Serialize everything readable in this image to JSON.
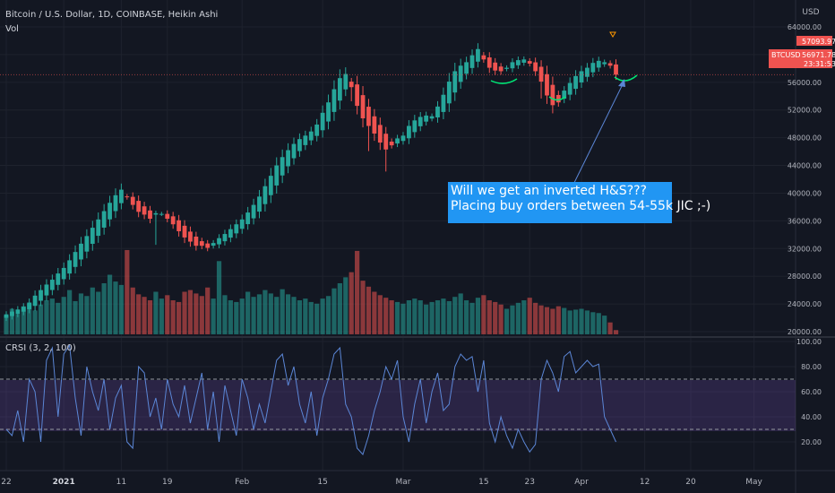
{
  "header": {
    "title": "Bitcoin / U.S. Dollar, 1D, COINBASE, Heikin Ashi",
    "vol_label": "Vol",
    "indicator_label": "CRSI (3, 2, 100)"
  },
  "annotation": {
    "line1": "Will we get an inverted H&S???",
    "line2": "Placing buy orders between 54-55k JIC ;-)"
  },
  "price_axis": {
    "currency": "USD",
    "ticks": [
      "64000.00",
      "60000.00",
      "56000.00",
      "52000.00",
      "48000.00",
      "44000.00",
      "40000.00",
      "36000.00",
      "32000.00",
      "28000.00",
      "24000.00",
      "20000.00"
    ],
    "price_tag_value": "57093.97",
    "symbol_tag": "BTCUSD",
    "symbol_price": "56971.78",
    "countdown": "23:31:53"
  },
  "crsi_axis": {
    "ticks": [
      "100.00",
      "80.00",
      "60.00",
      "40.00",
      "20.00"
    ]
  },
  "time_axis": {
    "labels": [
      "22",
      "2021",
      "11",
      "19",
      "Feb",
      "15",
      "Mar",
      "15",
      "23",
      "Apr",
      "12",
      "20",
      "May"
    ]
  },
  "colors": {
    "background": "#131722",
    "up": "#26a69a",
    "down": "#ef5350",
    "annotation_bg": "#2196f3",
    "crsi_line": "#5b86d6",
    "crsi_band": "#7e57c2",
    "marker": "#00e676"
  },
  "chart_data": {
    "type": "candlestick",
    "price_range": [
      20000,
      64000
    ],
    "crsi_range": [
      0,
      100
    ],
    "crsi_bands": [
      70,
      30
    ],
    "x_ticks": [
      {
        "label": "22",
        "index": 0
      },
      {
        "label": "2021",
        "index": 10
      },
      {
        "label": "11",
        "index": 20
      },
      {
        "label": "19",
        "index": 28
      },
      {
        "label": "Feb",
        "index": 41
      },
      {
        "label": "15",
        "index": 55
      },
      {
        "label": "Mar",
        "index": 69
      },
      {
        "label": "15",
        "index": 83
      },
      {
        "label": "23",
        "index": 91
      },
      {
        "label": "Apr",
        "index": 100
      },
      {
        "label": "12",
        "index": 111
      },
      {
        "label": "20",
        "index": 119
      },
      {
        "label": "May",
        "index": 130
      }
    ],
    "close": [
      22500,
      22900,
      23200,
      23600,
      24200,
      25200,
      26000,
      26800,
      27500,
      28400,
      29200,
      30300,
      31500,
      32700,
      33800,
      35000,
      36200,
      37400,
      38600,
      39700,
      40500,
      39400,
      38300,
      37300,
      36900,
      36300,
      37100,
      37000,
      36300,
      35500,
      34500,
      33600,
      33000,
      32400,
      32400,
      32100,
      32800,
      33500,
      34100,
      34800,
      35500,
      36200,
      37200,
      38300,
      39500,
      41000,
      42500,
      44000,
      45200,
      46200,
      47100,
      47800,
      48300,
      48900,
      49900,
      51600,
      53100,
      55000,
      56600,
      57200,
      55300,
      52600,
      50800,
      49700,
      48600,
      47300,
      46300,
      46900,
      47900,
      48300,
      49700,
      50500,
      51000,
      51200,
      51100,
      52500,
      54200,
      56100,
      57600,
      58400,
      58900,
      59900,
      60800,
      59300,
      58100,
      57700,
      57600,
      58100,
      58900,
      59200,
      59300,
      58700,
      57600,
      56100,
      54100,
      52700,
      53100,
      54800,
      55900,
      56900,
      57600,
      58100,
      58800,
      59100,
      58900,
      58400,
      57100
    ],
    "volume": [
      0.22,
      0.3,
      0.24,
      0.33,
      0.36,
      0.28,
      0.35,
      0.4,
      0.42,
      0.37,
      0.44,
      0.52,
      0.39,
      0.48,
      0.45,
      0.55,
      0.5,
      0.6,
      0.7,
      0.62,
      0.58,
      0.99,
      0.55,
      0.47,
      0.44,
      0.4,
      0.5,
      0.42,
      0.46,
      0.4,
      0.38,
      0.5,
      0.52,
      0.48,
      0.45,
      0.55,
      0.42,
      0.86,
      0.46,
      0.4,
      0.38,
      0.42,
      0.5,
      0.44,
      0.47,
      0.52,
      0.48,
      0.44,
      0.53,
      0.47,
      0.44,
      0.4,
      0.42,
      0.38,
      0.36,
      0.42,
      0.45,
      0.54,
      0.6,
      0.67,
      0.73,
      0.98,
      0.63,
      0.56,
      0.5,
      0.46,
      0.43,
      0.4,
      0.38,
      0.36,
      0.4,
      0.42,
      0.4,
      0.35,
      0.38,
      0.4,
      0.42,
      0.39,
      0.44,
      0.48,
      0.4,
      0.37,
      0.43,
      0.46,
      0.4,
      0.38,
      0.35,
      0.3,
      0.34,
      0.37,
      0.4,
      0.43,
      0.37,
      0.34,
      0.32,
      0.3,
      0.33,
      0.31,
      0.28,
      0.29,
      0.3,
      0.28,
      0.26,
      0.25,
      0.22,
      0.14,
      0.05
    ],
    "crsi": [
      30,
      25,
      45,
      20,
      70,
      60,
      20,
      85,
      95,
      40,
      90,
      97,
      55,
      25,
      80,
      60,
      45,
      70,
      30,
      55,
      65,
      20,
      15,
      80,
      75,
      40,
      55,
      30,
      70,
      50,
      40,
      65,
      35,
      55,
      75,
      30,
      60,
      20,
      65,
      45,
      25,
      70,
      55,
      30,
      50,
      35,
      60,
      85,
      90,
      65,
      80,
      50,
      35,
      60,
      25,
      55,
      70,
      90,
      95,
      50,
      40,
      15,
      10,
      25,
      45,
      60,
      80,
      70,
      85,
      40,
      20,
      50,
      70,
      35,
      60,
      75,
      45,
      50,
      80,
      90,
      85,
      88,
      60,
      85,
      35,
      20,
      40,
      25,
      15,
      30,
      20,
      12,
      18,
      70,
      85,
      75,
      60,
      88,
      92,
      75,
      80,
      85,
      80,
      82,
      40,
      30,
      20
    ]
  }
}
